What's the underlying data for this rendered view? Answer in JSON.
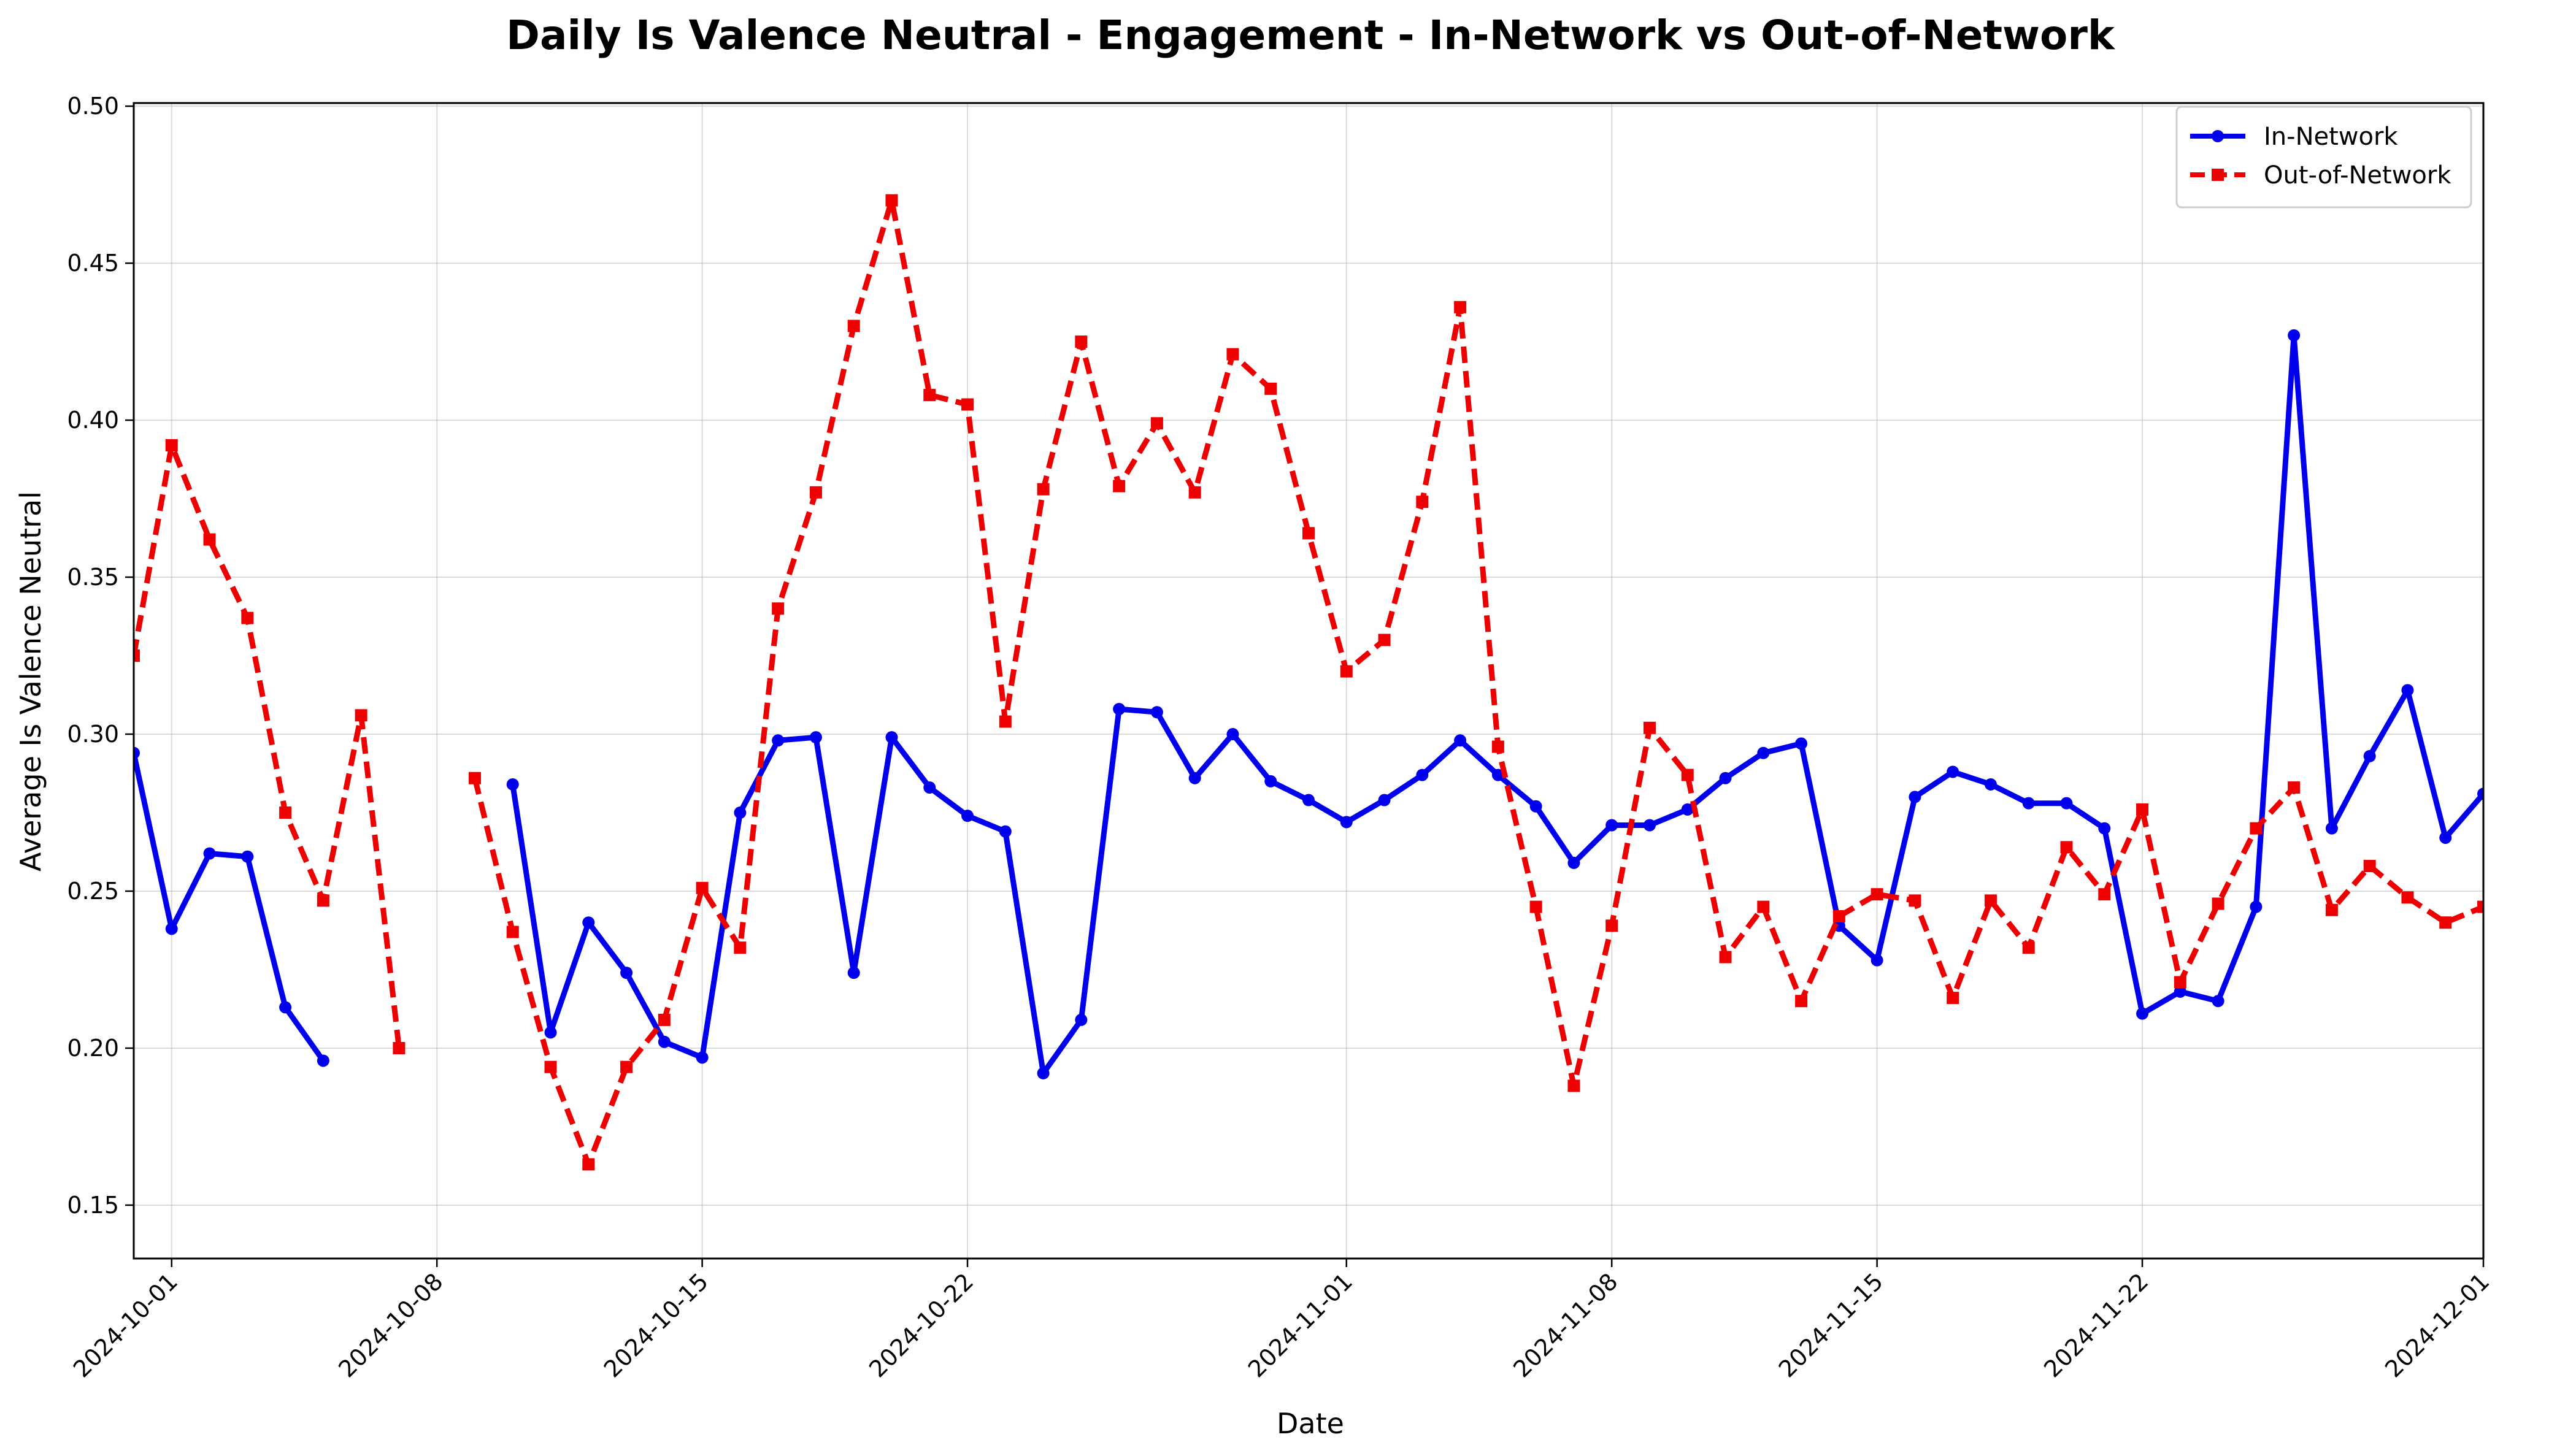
{
  "colors": {
    "in_network": "#0000ee",
    "out_of_network": "#ee0000"
  },
  "chart_data": {
    "type": "line",
    "title": "Daily Is Valence Neutral - Engagement - In-Network vs Out-of-Network",
    "xlabel": "Date",
    "ylabel": "Average Is Valence Neutral",
    "xlim": [
      "2024-09-30",
      "2024-12-01"
    ],
    "ylim": [
      0.133,
      0.501
    ],
    "x_ticks": [
      "2024-10-01",
      "2024-10-08",
      "2024-10-15",
      "2024-10-22",
      "2024-11-01",
      "2024-11-08",
      "2024-11-15",
      "2024-11-22",
      "2024-12-01"
    ],
    "y_ticks": [
      "0.15",
      "0.20",
      "0.25",
      "0.30",
      "0.35",
      "0.40",
      "0.45",
      "0.50"
    ],
    "grid": true,
    "legend_position": "top-right",
    "series": [
      {
        "name": "In-Network",
        "style": "solid",
        "marker": "circle",
        "color": "#0000ee",
        "points": [
          {
            "x": "2024-09-30",
            "y": 0.294
          },
          {
            "x": "2024-10-01",
            "y": 0.238
          },
          {
            "x": "2024-10-02",
            "y": 0.262
          },
          {
            "x": "2024-10-03",
            "y": 0.261
          },
          {
            "x": "2024-10-04",
            "y": 0.213
          },
          {
            "x": "2024-10-05",
            "y": 0.196
          },
          {
            "x": "2024-10-10",
            "y": 0.284
          },
          {
            "x": "2024-10-11",
            "y": 0.205
          },
          {
            "x": "2024-10-12",
            "y": 0.24
          },
          {
            "x": "2024-10-13",
            "y": 0.224
          },
          {
            "x": "2024-10-14",
            "y": 0.202
          },
          {
            "x": "2024-10-15",
            "y": 0.197
          },
          {
            "x": "2024-10-16",
            "y": 0.275
          },
          {
            "x": "2024-10-17",
            "y": 0.298
          },
          {
            "x": "2024-10-18",
            "y": 0.299
          },
          {
            "x": "2024-10-19",
            "y": 0.224
          },
          {
            "x": "2024-10-20",
            "y": 0.299
          },
          {
            "x": "2024-10-21",
            "y": 0.283
          },
          {
            "x": "2024-10-22",
            "y": 0.274
          },
          {
            "x": "2024-10-23",
            "y": 0.269
          },
          {
            "x": "2024-10-24",
            "y": 0.192
          },
          {
            "x": "2024-10-25",
            "y": 0.209
          },
          {
            "x": "2024-10-26",
            "y": 0.308
          },
          {
            "x": "2024-10-27",
            "y": 0.307
          },
          {
            "x": "2024-10-28",
            "y": 0.286
          },
          {
            "x": "2024-10-29",
            "y": 0.3
          },
          {
            "x": "2024-10-30",
            "y": 0.285
          },
          {
            "x": "2024-10-31",
            "y": 0.279
          },
          {
            "x": "2024-11-01",
            "y": 0.272
          },
          {
            "x": "2024-11-02",
            "y": 0.279
          },
          {
            "x": "2024-11-03",
            "y": 0.287
          },
          {
            "x": "2024-11-04",
            "y": 0.298
          },
          {
            "x": "2024-11-05",
            "y": 0.287
          },
          {
            "x": "2024-11-06",
            "y": 0.277
          },
          {
            "x": "2024-11-07",
            "y": 0.259
          },
          {
            "x": "2024-11-08",
            "y": 0.271
          },
          {
            "x": "2024-11-09",
            "y": 0.271
          },
          {
            "x": "2024-11-10",
            "y": 0.276
          },
          {
            "x": "2024-11-11",
            "y": 0.286
          },
          {
            "x": "2024-11-12",
            "y": 0.294
          },
          {
            "x": "2024-11-13",
            "y": 0.297
          },
          {
            "x": "2024-11-14",
            "y": 0.239
          },
          {
            "x": "2024-11-15",
            "y": 0.228
          },
          {
            "x": "2024-11-16",
            "y": 0.28
          },
          {
            "x": "2024-11-17",
            "y": 0.288
          },
          {
            "x": "2024-11-18",
            "y": 0.284
          },
          {
            "x": "2024-11-19",
            "y": 0.278
          },
          {
            "x": "2024-11-20",
            "y": 0.278
          },
          {
            "x": "2024-11-21",
            "y": 0.27
          },
          {
            "x": "2024-11-22",
            "y": 0.211
          },
          {
            "x": "2024-11-23",
            "y": 0.218
          },
          {
            "x": "2024-11-24",
            "y": 0.215
          },
          {
            "x": "2024-11-25",
            "y": 0.245
          },
          {
            "x": "2024-11-26",
            "y": 0.427
          },
          {
            "x": "2024-11-27",
            "y": 0.27
          },
          {
            "x": "2024-11-28",
            "y": 0.293
          },
          {
            "x": "2024-11-29",
            "y": 0.314
          },
          {
            "x": "2024-11-30",
            "y": 0.267
          },
          {
            "x": "2024-12-01",
            "y": 0.281
          }
        ]
      },
      {
        "name": "Out-of-Network",
        "style": "dashed",
        "marker": "square",
        "color": "#ee0000",
        "points": [
          {
            "x": "2024-09-30",
            "y": 0.325
          },
          {
            "x": "2024-10-01",
            "y": 0.392
          },
          {
            "x": "2024-10-02",
            "y": 0.362
          },
          {
            "x": "2024-10-03",
            "y": 0.337
          },
          {
            "x": "2024-10-04",
            "y": 0.275
          },
          {
            "x": "2024-10-05",
            "y": 0.247
          },
          {
            "x": "2024-10-06",
            "y": 0.306
          },
          {
            "x": "2024-10-07",
            "y": 0.2
          },
          {
            "x": "2024-10-09",
            "y": 0.286
          },
          {
            "x": "2024-10-10",
            "y": 0.237
          },
          {
            "x": "2024-10-11",
            "y": 0.194
          },
          {
            "x": "2024-10-12",
            "y": 0.163
          },
          {
            "x": "2024-10-13",
            "y": 0.194
          },
          {
            "x": "2024-10-14",
            "y": 0.209
          },
          {
            "x": "2024-10-15",
            "y": 0.251
          },
          {
            "x": "2024-10-16",
            "y": 0.232
          },
          {
            "x": "2024-10-17",
            "y": 0.34
          },
          {
            "x": "2024-10-18",
            "y": 0.377
          },
          {
            "x": "2024-10-19",
            "y": 0.43
          },
          {
            "x": "2024-10-20",
            "y": 0.47
          },
          {
            "x": "2024-10-21",
            "y": 0.408
          },
          {
            "x": "2024-10-22",
            "y": 0.405
          },
          {
            "x": "2024-10-23",
            "y": 0.304
          },
          {
            "x": "2024-10-24",
            "y": 0.378
          },
          {
            "x": "2024-10-25",
            "y": 0.425
          },
          {
            "x": "2024-10-26",
            "y": 0.379
          },
          {
            "x": "2024-10-27",
            "y": 0.399
          },
          {
            "x": "2024-10-28",
            "y": 0.377
          },
          {
            "x": "2024-10-29",
            "y": 0.421
          },
          {
            "x": "2024-10-30",
            "y": 0.41
          },
          {
            "x": "2024-10-31",
            "y": 0.364
          },
          {
            "x": "2024-11-01",
            "y": 0.32
          },
          {
            "x": "2024-11-02",
            "y": 0.33
          },
          {
            "x": "2024-11-03",
            "y": 0.374
          },
          {
            "x": "2024-11-04",
            "y": 0.436
          },
          {
            "x": "2024-11-05",
            "y": 0.296
          },
          {
            "x": "2024-11-06",
            "y": 0.245
          },
          {
            "x": "2024-11-07",
            "y": 0.188
          },
          {
            "x": "2024-11-08",
            "y": 0.239
          },
          {
            "x": "2024-11-09",
            "y": 0.302
          },
          {
            "x": "2024-11-10",
            "y": 0.287
          },
          {
            "x": "2024-11-11",
            "y": 0.229
          },
          {
            "x": "2024-11-12",
            "y": 0.245
          },
          {
            "x": "2024-11-13",
            "y": 0.215
          },
          {
            "x": "2024-11-14",
            "y": 0.242
          },
          {
            "x": "2024-11-15",
            "y": 0.249
          },
          {
            "x": "2024-11-16",
            "y": 0.247
          },
          {
            "x": "2024-11-17",
            "y": 0.216
          },
          {
            "x": "2024-11-18",
            "y": 0.247
          },
          {
            "x": "2024-11-19",
            "y": 0.232
          },
          {
            "x": "2024-11-20",
            "y": 0.264
          },
          {
            "x": "2024-11-21",
            "y": 0.249
          },
          {
            "x": "2024-11-22",
            "y": 0.276
          },
          {
            "x": "2024-11-23",
            "y": 0.221
          },
          {
            "x": "2024-11-24",
            "y": 0.246
          },
          {
            "x": "2024-11-25",
            "y": 0.27
          },
          {
            "x": "2024-11-26",
            "y": 0.283
          },
          {
            "x": "2024-11-27",
            "y": 0.244
          },
          {
            "x": "2024-11-28",
            "y": 0.258
          },
          {
            "x": "2024-11-29",
            "y": 0.248
          },
          {
            "x": "2024-11-30",
            "y": 0.24
          },
          {
            "x": "2024-12-01",
            "y": 0.245
          }
        ]
      }
    ]
  }
}
